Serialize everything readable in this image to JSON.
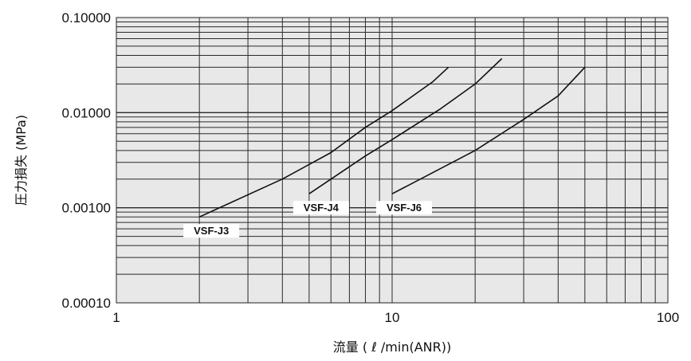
{
  "chart_data": {
    "type": "line",
    "xlabel": "流量 ( ℓ /min(ANR))",
    "ylabel": "圧力損失 (MPa)",
    "x_scale": "log",
    "y_scale": "log",
    "xlim": [
      1,
      100
    ],
    "ylim": [
      0.0001,
      0.1
    ],
    "grid": true,
    "x_ticks": [
      {
        "value": 1,
        "label": "1"
      },
      {
        "value": 10,
        "label": "10"
      },
      {
        "value": 100,
        "label": "100"
      }
    ],
    "y_ticks": [
      {
        "value": 0.1,
        "label": "0.10000"
      },
      {
        "value": 0.01,
        "label": "0.01000"
      },
      {
        "value": 0.001,
        "label": "0.00100"
      },
      {
        "value": 0.0001,
        "label": "0.00010"
      }
    ],
    "series": [
      {
        "name": "VSF-J3",
        "x": [
          2,
          4,
          6,
          8,
          10,
          14,
          16
        ],
        "y": [
          0.0008,
          0.002,
          0.0038,
          0.007,
          0.0105,
          0.021,
          0.03
        ]
      },
      {
        "name": "VSF-J4",
        "x": [
          5,
          8,
          10,
          15,
          20,
          25
        ],
        "y": [
          0.0014,
          0.0035,
          0.0052,
          0.011,
          0.02,
          0.037
        ]
      },
      {
        "name": "VSF-J6",
        "x": [
          10,
          20,
          30,
          40,
          50
        ],
        "y": [
          0.0014,
          0.004,
          0.0085,
          0.015,
          0.03
        ]
      }
    ]
  }
}
